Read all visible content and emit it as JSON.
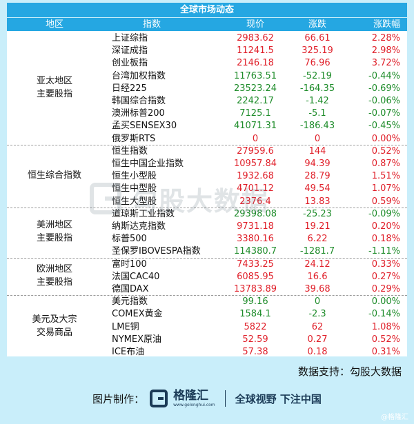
{
  "title": "全球市场动态",
  "headers": [
    "地区",
    "指数",
    "现价",
    "涨跌",
    "涨跌幅"
  ],
  "groups": [
    {
      "region": [
        "亚太地区",
        "主要股指"
      ],
      "rows": [
        {
          "name": "上证综指",
          "price": "2983.62",
          "chg": "66.61",
          "pct": "2.28%",
          "dir": "up"
        },
        {
          "name": "深证成指",
          "price": "11241.5",
          "chg": "325.19",
          "pct": "2.98%",
          "dir": "up"
        },
        {
          "name": "创业板指",
          "price": "2146.18",
          "chg": "76.96",
          "pct": "3.72%",
          "dir": "up"
        },
        {
          "name": "台湾加权指数",
          "price": "11763.51",
          "chg": "-52.19",
          "pct": "-0.44%",
          "dir": "down"
        },
        {
          "name": "日经225",
          "price": "23523.24",
          "chg": "-164.35",
          "pct": "-0.69%",
          "dir": "down"
        },
        {
          "name": "韩国综合指数",
          "price": "2242.17",
          "chg": "-1.42",
          "pct": "-0.06%",
          "dir": "down"
        },
        {
          "name": "澳洲标普200",
          "price": "7125.1",
          "chg": "-5.1",
          "pct": "-0.07%",
          "dir": "down"
        },
        {
          "name": "孟买SENSEX30",
          "price": "41071.31",
          "chg": "-186.43",
          "pct": "-0.45%",
          "dir": "down"
        },
        {
          "name": "俄罗斯RTS",
          "price": "0",
          "chg": "0",
          "pct": "0.00%",
          "dir": "up"
        }
      ]
    },
    {
      "region": [
        "恒生综合指数"
      ],
      "rows": [
        {
          "name": "恒生指数",
          "price": "27959.6",
          "chg": "144",
          "pct": "0.52%",
          "dir": "up"
        },
        {
          "name": "恒生中国企业指数",
          "price": "10957.84",
          "chg": "94.39",
          "pct": "0.87%",
          "dir": "up"
        },
        {
          "name": "恒生小型股",
          "price": "1932.68",
          "chg": "28.79",
          "pct": "1.51%",
          "dir": "up"
        },
        {
          "name": "恒生中型股",
          "price": "4701.12",
          "chg": "49.54",
          "pct": "1.07%",
          "dir": "up"
        },
        {
          "name": "恒生大型股",
          "price": "2376.4",
          "chg": "13.83",
          "pct": "0.59%",
          "dir": "up"
        }
      ]
    },
    {
      "region": [
        "美洲地区",
        "主要股指"
      ],
      "rows": [
        {
          "name": "道琼斯工业指数",
          "price": "29398.08",
          "chg": "-25.23",
          "pct": "-0.09%",
          "dir": "down"
        },
        {
          "name": "纳斯达克指数",
          "price": "9731.18",
          "chg": "19.21",
          "pct": "0.20%",
          "dir": "up"
        },
        {
          "name": "标普500",
          "price": "3380.16",
          "chg": "6.22",
          "pct": "0.18%",
          "dir": "up"
        },
        {
          "name": "圣保罗IBOVESPA指数",
          "price": "114380.7",
          "chg": "-1281.7",
          "pct": "-1.11%",
          "dir": "down"
        }
      ]
    },
    {
      "region": [
        "欧洲地区",
        "主要股指"
      ],
      "rows": [
        {
          "name": "富时100",
          "price": "7433.25",
          "chg": "24.12",
          "pct": "0.33%",
          "dir": "up"
        },
        {
          "name": "法国CAC40",
          "price": "6085.95",
          "chg": "16.6",
          "pct": "0.27%",
          "dir": "up"
        },
        {
          "name": "德国DAX",
          "price": "13783.89",
          "chg": "39.68",
          "pct": "0.29%",
          "dir": "up"
        }
      ]
    },
    {
      "region": [
        "美元及大宗",
        "交易商品"
      ],
      "rows": [
        {
          "name": "美元指数",
          "price": "99.16",
          "chg": "0",
          "pct": "0.00%",
          "dir": "down"
        },
        {
          "name": "COMEX黄金",
          "price": "1584.1",
          "chg": "-2.3",
          "pct": "-0.14%",
          "dir": "down"
        },
        {
          "name": "LME铜",
          "price": "5822",
          "chg": "62",
          "pct": "1.08%",
          "dir": "up"
        },
        {
          "name": "NYMEX原油",
          "price": "52.59",
          "chg": "0.27",
          "pct": "0.52%",
          "dir": "up"
        },
        {
          "name": "ICE布油",
          "price": "57.38",
          "chg": "0.18",
          "pct": "0.31%",
          "dir": "up"
        }
      ]
    }
  ],
  "watermark": "勾股大数据",
  "support_text": "数据支持：勾股大数据",
  "footer": {
    "made_by": "图片制作：",
    "brand_name": "格隆汇",
    "brand_url": "www.gelonghui.com",
    "slogan": "全球视野 下注中国"
  },
  "corner_mark": "@格隆汇",
  "colors": {
    "up": "#e0202a",
    "down": "#1e8c2a",
    "header": "#25a7e2",
    "background": "#c9eefa"
  }
}
